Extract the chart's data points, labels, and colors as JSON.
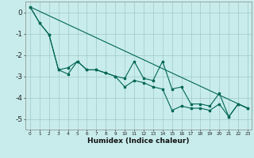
{
  "xlabel": "Humidex (Indice chaleur)",
  "bg_color": "#c8ecec",
  "grid_color": "#a0c8c8",
  "line_color": "#006655",
  "xlim_min": -0.5,
  "xlim_max": 23.4,
  "ylim_min": -5.5,
  "ylim_max": 0.5,
  "yticks": [
    0,
    -1,
    -2,
    -3,
    -4,
    -5
  ],
  "xtick_vals": [
    0,
    1,
    2,
    3,
    4,
    5,
    6,
    7,
    8,
    9,
    10,
    11,
    12,
    13,
    14,
    15,
    16,
    17,
    18,
    19,
    20,
    21,
    22,
    23
  ],
  "xtick_labels": [
    "0",
    "1",
    "2",
    "3",
    "4",
    "5",
    "6",
    "7",
    "8",
    "9",
    "10",
    "11",
    "12",
    "13",
    "14",
    "15",
    "16",
    "17",
    "18",
    "19",
    "20",
    "21",
    "22",
    "23"
  ],
  "line1_x": [
    0,
    1,
    2,
    3,
    4,
    5,
    6,
    7,
    8,
    9,
    10,
    11,
    12,
    13,
    14,
    15,
    16,
    17,
    18,
    19,
    20,
    21,
    22,
    23
  ],
  "line1_y": [
    0.25,
    -0.5,
    -1.05,
    -2.7,
    -2.9,
    -2.3,
    -2.7,
    -2.7,
    -2.85,
    -3.0,
    -3.5,
    -3.2,
    -3.3,
    -3.5,
    -3.6,
    -4.6,
    -4.4,
    -4.5,
    -4.5,
    -4.6,
    -4.3,
    -4.9,
    -4.3,
    -4.5
  ],
  "line2_x": [
    0,
    1,
    2,
    3,
    4,
    5,
    6,
    7,
    8,
    9,
    10,
    11,
    12,
    13,
    14,
    15,
    16,
    17,
    18,
    19,
    20,
    21,
    22,
    23
  ],
  "line2_y": [
    0.25,
    -0.5,
    -1.05,
    -2.7,
    -2.6,
    -2.3,
    -2.7,
    -2.7,
    -2.85,
    -3.0,
    -3.1,
    -2.3,
    -3.1,
    -3.2,
    -2.3,
    -3.6,
    -3.5,
    -4.3,
    -4.3,
    -4.4,
    -3.8,
    -4.9,
    -4.3,
    -4.5
  ],
  "trend_x": [
    0,
    23
  ],
  "trend_y": [
    0.25,
    -4.5
  ]
}
